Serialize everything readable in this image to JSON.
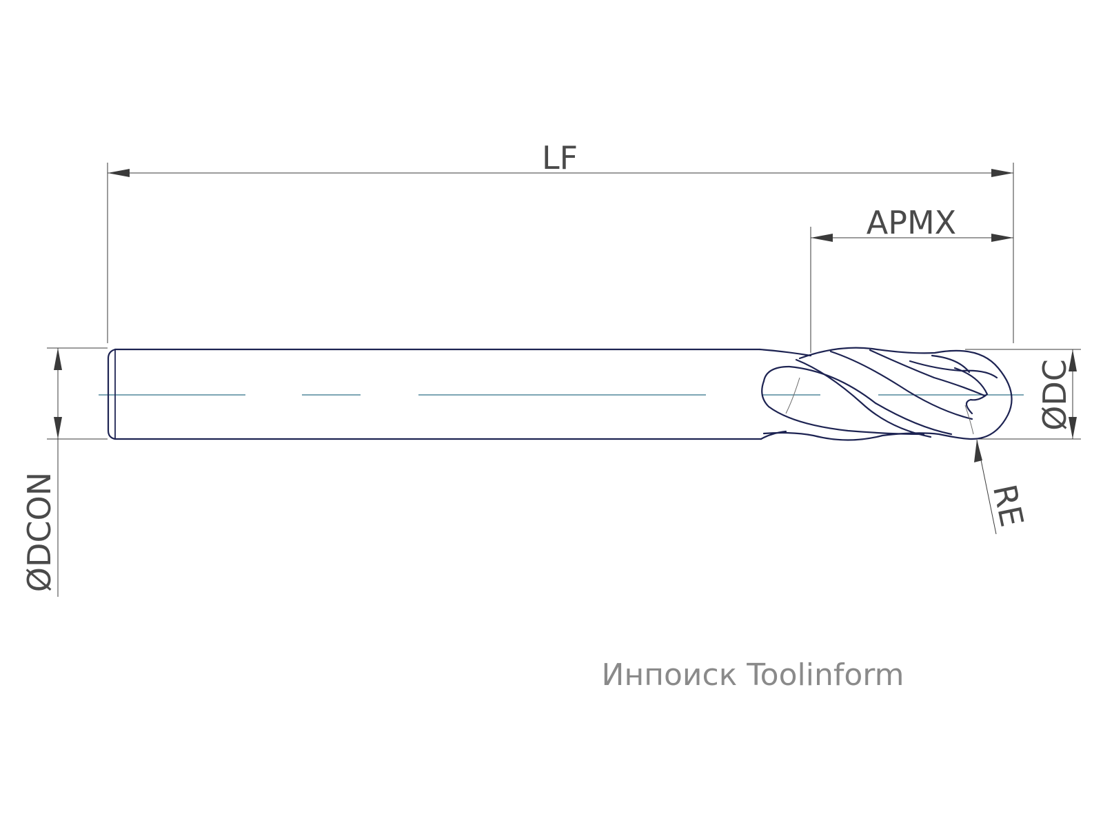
{
  "labels": {
    "lf": "LF",
    "apmx": "APMX",
    "dc": "ØDC",
    "dcon": "ØDCON",
    "re": "RE"
  },
  "brand": "Инпоиск Toolinform",
  "colors": {
    "tool_outline": "#1d2352",
    "center_line": "#2f6f86",
    "dimension_lines": "#3a3a3a",
    "dimension_text": "#4a4a4a",
    "brand_text": "#8a8a8a"
  }
}
